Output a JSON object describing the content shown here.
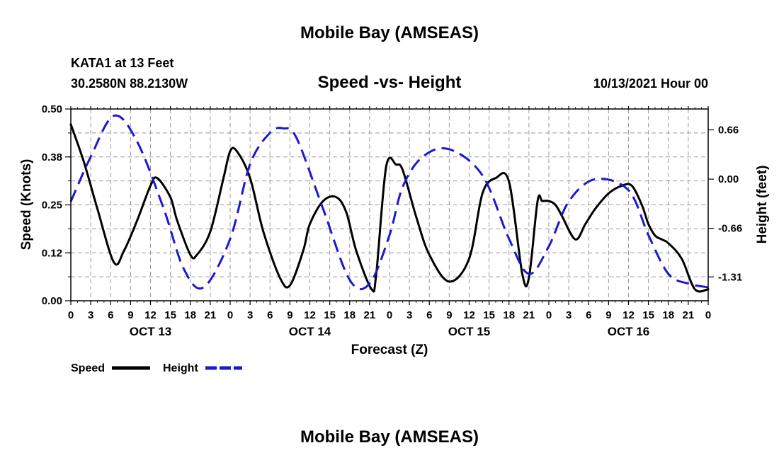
{
  "header": {
    "title": "Mobile Bay (AMSEAS)",
    "station": "KATA1 at 13 Feet",
    "coords": "30.2580N  88.2130W",
    "subtitle": "Speed -vs- Height",
    "datetime": "10/13/2021 Hour 00",
    "footer_title": "Mobile Bay (AMSEAS)"
  },
  "legend": {
    "speed_label": "Speed",
    "height_label": "Height"
  },
  "colors": {
    "speed": "#000000",
    "height": "#1a1acc",
    "grid": "#9a9a9a"
  },
  "chart_data": {
    "type": "line",
    "xlabel": "Forecast (Z)",
    "ylabel_left": "Speed (Knots)",
    "ylabel_right": "Height (feet)",
    "x_unit": "hours since 10/13/2021 00Z",
    "xlim": [
      0,
      96
    ],
    "ylim_left": [
      0,
      0.5
    ],
    "ylim_right": [
      -1.63,
      0.94
    ],
    "left_ticks": [
      "0.00",
      "0.12",
      "0.25",
      "0.38",
      "0.50"
    ],
    "left_tick_values": [
      0,
      0.125,
      0.25,
      0.375,
      0.5
    ],
    "right_ticks": [
      "-1.31",
      "-0.66",
      "0.00",
      "0.66"
    ],
    "right_tick_values": [
      -1.31,
      -0.66,
      0.0,
      0.66
    ],
    "x_ticks": [
      0,
      3,
      6,
      9,
      12,
      15,
      18,
      21,
      24,
      27,
      30,
      33,
      36,
      39,
      42,
      45,
      48,
      51,
      54,
      57,
      60,
      63,
      66,
      69,
      72,
      75,
      78,
      81,
      84,
      87,
      90,
      93,
      96
    ],
    "x_tick_labels": [
      "0",
      "3",
      "6",
      "9",
      "12",
      "15",
      "18",
      "21",
      "0",
      "3",
      "6",
      "9",
      "12",
      "15",
      "18",
      "21",
      "0",
      "3",
      "6",
      "9",
      "12",
      "15",
      "18",
      "21",
      "0",
      "3",
      "6",
      "9",
      "12",
      "15",
      "18",
      "21",
      "0"
    ],
    "day_labels": [
      {
        "x": 12,
        "label": "OCT 13"
      },
      {
        "x": 36,
        "label": "OCT 14"
      },
      {
        "x": 60,
        "label": "OCT 15"
      },
      {
        "x": 84,
        "label": "OCT 16"
      }
    ],
    "series": [
      {
        "name": "Speed",
        "axis": "left",
        "style": "solid",
        "x": [
          0,
          2,
          4,
          6.5,
          8,
          10,
          12,
          13,
          15,
          16,
          18,
          19,
          21,
          23,
          24,
          25,
          27,
          29,
          31.5,
          33,
          35,
          36,
          38,
          40,
          41.5,
          43,
          45.3,
          46,
          47.5,
          49,
          50,
          52,
          54,
          57,
          60,
          62,
          64,
          66,
          68,
          69,
          70.3,
          71,
          72,
          73,
          74,
          76,
          77.5,
          79,
          81,
          83,
          84.5,
          86,
          87,
          88,
          89,
          90,
          92,
          94,
          96
        ],
        "y": [
          0.46,
          0.36,
          0.24,
          0.1,
          0.13,
          0.21,
          0.3,
          0.32,
          0.27,
          0.21,
          0.12,
          0.12,
          0.18,
          0.32,
          0.39,
          0.39,
          0.32,
          0.18,
          0.06,
          0.04,
          0.13,
          0.2,
          0.26,
          0.27,
          0.23,
          0.13,
          0.03,
          0.07,
          0.35,
          0.355,
          0.34,
          0.22,
          0.12,
          0.05,
          0.11,
          0.28,
          0.32,
          0.31,
          0.07,
          0.06,
          0.26,
          0.26,
          0.26,
          0.25,
          0.22,
          0.16,
          0.2,
          0.24,
          0.28,
          0.3,
          0.3,
          0.25,
          0.2,
          0.17,
          0.16,
          0.15,
          0.11,
          0.03,
          0.03
        ]
      },
      {
        "name": "Height",
        "axis": "right",
        "style": "dashed",
        "x": [
          0,
          3,
          6.5,
          10,
          14,
          17,
          20,
          24,
          27,
          30,
          32,
          34,
          38,
          42,
          45,
          48,
          50,
          53,
          57,
          62,
          66,
          69,
          72,
          75,
          79,
          84,
          87,
          90,
          93,
          96
        ],
        "y": [
          -0.3,
          0.3,
          0.85,
          0.5,
          -0.4,
          -1.2,
          -1.45,
          -0.8,
          0.2,
          0.62,
          0.68,
          0.55,
          -0.4,
          -1.35,
          -1.4,
          -0.75,
          -0.1,
          0.3,
          0.4,
          0.05,
          -0.8,
          -1.27,
          -0.9,
          -0.3,
          0.0,
          -0.15,
          -0.75,
          -1.27,
          -1.4,
          -1.45
        ]
      }
    ]
  }
}
